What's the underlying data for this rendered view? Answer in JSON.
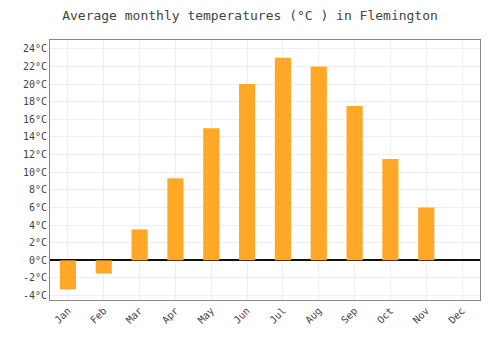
{
  "chart_data": {
    "type": "bar",
    "title": "Average monthly temperatures (°C ) in Flemington",
    "categories": [
      "Jan",
      "Feb",
      "Mar",
      "Apr",
      "May",
      "Jun",
      "Jul",
      "Aug",
      "Sep",
      "Oct",
      "Nov",
      "Dec"
    ],
    "values": [
      -3.3,
      -1.5,
      3.5,
      9.3,
      15.0,
      20.0,
      23.0,
      22.0,
      17.5,
      11.5,
      6.0,
      0.0
    ],
    "color": "#FFA726",
    "ylim": [
      -4.5,
      25
    ],
    "yticks": [
      {
        "value": -4,
        "label": "-4°C"
      },
      {
        "value": -2,
        "label": "-2°C"
      },
      {
        "value": 0,
        "label": "0°C"
      },
      {
        "value": 2,
        "label": "2°C"
      },
      {
        "value": 4,
        "label": "4°C"
      },
      {
        "value": 6,
        "label": "6°C"
      },
      {
        "value": 8,
        "label": "8°C"
      },
      {
        "value": 10,
        "label": "10°C"
      },
      {
        "value": 12,
        "label": "12°C"
      },
      {
        "value": 14,
        "label": "14°C"
      },
      {
        "value": 16,
        "label": "16°C"
      },
      {
        "value": 18,
        "label": "18°C"
      },
      {
        "value": 20,
        "label": "20°C"
      },
      {
        "value": 22,
        "label": "22°C"
      },
      {
        "value": 24,
        "label": "24°C"
      }
    ],
    "grid": true
  }
}
